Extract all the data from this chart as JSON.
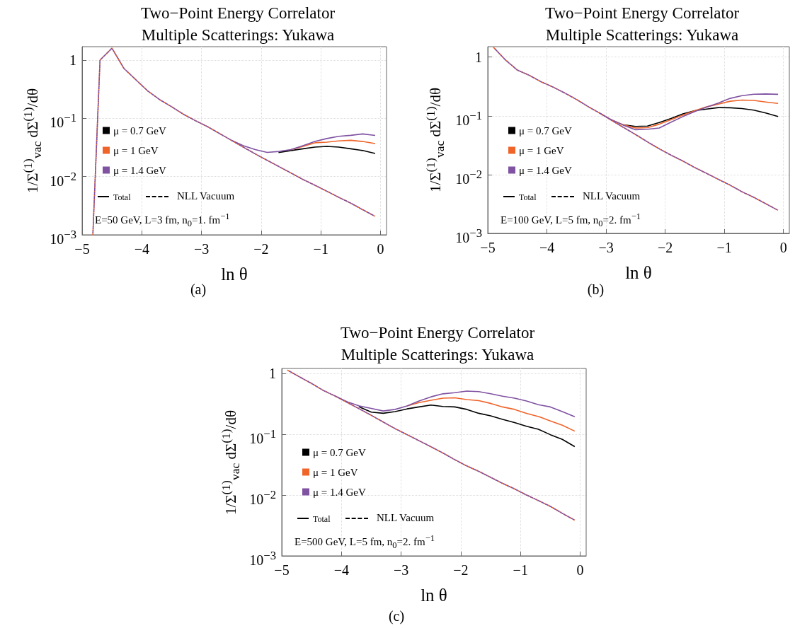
{
  "chart_data": [
    {
      "type": "line",
      "title": "Two−Point Energy Correlator",
      "subtitle": "Multiple Scatterings: Yukawa",
      "xlabel": "ln θ",
      "ylabel": "1/Σ$^{(1)}$$_{vac}$ dΣ$^{(1)}$/dθ",
      "log": "y",
      "grid": true,
      "legend": "left",
      "marker": "none",
      "xlim": [
        -5,
        0.1
      ],
      "xticks": [
        {
          "value": -5,
          "label": "−5"
        },
        {
          "value": -4,
          "label": "−4"
        },
        {
          "value": -3,
          "label": "−3"
        },
        {
          "value": -2,
          "label": "−2"
        },
        {
          "value": -1,
          "label": "−1"
        },
        {
          "value": 0,
          "label": "0"
        }
      ],
      "ylim": [
        0.001,
        1.7
      ],
      "yticks": [
        {
          "value": 0.001,
          "label": "10$^{−3}$"
        },
        {
          "value": 0.01,
          "label": "10$^{−2}$"
        },
        {
          "value": 0.1,
          "label": "10$^{−1}$"
        },
        {
          "value": 1,
          "label": "1"
        }
      ],
      "x": [
        -4.82,
        -4.7,
        -4.5,
        -4.3,
        -4.1,
        -3.9,
        -3.7,
        -3.5,
        -3.3,
        -3.1,
        -2.9,
        -2.7,
        -2.5,
        -2.3,
        -2.1,
        -1.9,
        -1.7,
        -1.5,
        -1.3,
        -1.1,
        -0.9,
        -0.7,
        -0.5,
        -0.3,
        -0.1
      ],
      "series": [
        {
          "name": "μ = 0.7 GeV",
          "color": "#000000",
          "line_style": "solid",
          "values": [
            null,
            null,
            null,
            null,
            null,
            null,
            null,
            null,
            null,
            null,
            null,
            null,
            null,
            null,
            null,
            null,
            0.026,
            0.028,
            0.03,
            0.032,
            0.033,
            0.032,
            0.03,
            0.028,
            0.025
          ]
        },
        {
          "name": "μ = 1 GeV",
          "color": "#f0642a",
          "line_style": "solid",
          "values": [
            null,
            null,
            null,
            null,
            null,
            null,
            null,
            null,
            null,
            null,
            null,
            null,
            null,
            null,
            null,
            null,
            null,
            0.029,
            0.033,
            0.038,
            0.039,
            0.041,
            0.042,
            0.04,
            0.037
          ]
        },
        {
          "name": "μ = 1.4 GeV",
          "color": "#7f52a2",
          "line_style": "solid",
          "values": [
            null,
            null,
            null,
            null,
            null,
            null,
            null,
            null,
            null,
            null,
            null,
            null,
            0.042,
            0.034,
            0.029,
            0.026,
            0.027,
            0.029,
            0.034,
            0.04,
            0.045,
            0.049,
            0.051,
            0.054,
            0.051
          ]
        },
        {
          "color": "#f0642a",
          "line_style": "dashed",
          "values": [
            0.001,
            1.0,
            1.6,
            0.72,
            0.46,
            0.295,
            0.209,
            0.158,
            0.117,
            0.091,
            0.072,
            0.055,
            0.042,
            0.032,
            0.0245,
            0.019,
            0.0148,
            0.0115,
            0.0089,
            0.0071,
            0.0056,
            0.0044,
            0.0035,
            0.0027,
            0.0021
          ]
        },
        {
          "color": "#7f52a2",
          "line_style": "dashed",
          "values": [
            0.001,
            1.0,
            1.6,
            0.72,
            0.46,
            0.295,
            0.209,
            0.158,
            0.117,
            0.091,
            0.072,
            0.055,
            0.042,
            0.032,
            0.0245,
            0.019,
            0.0148,
            0.0115,
            0.0089,
            0.0071,
            0.0056,
            0.0044,
            0.0035,
            0.0027,
            0.0021
          ]
        }
      ],
      "annotations": [
        "Total",
        "NLL Vacuum",
        "E=50 GeV, L=3 fm, n$_{0}$=1. fm$^{−1}$",
        "(a)"
      ]
    },
    {
      "type": "line",
      "title": "Two−Point Energy Correlator",
      "subtitle": "Multiple Scatterings: Yukawa",
      "xlabel": "ln θ",
      "ylabel": "1/Σ$^{(1)}$$_{vac}$ dΣ$^{(1)}$/dθ",
      "log": "y",
      "grid": true,
      "legend": "left",
      "marker": "none",
      "xlim": [
        -5,
        0.1
      ],
      "xticks": [
        {
          "value": -5,
          "label": "−5"
        },
        {
          "value": -4,
          "label": "−4"
        },
        {
          "value": -3,
          "label": "−3"
        },
        {
          "value": -2,
          "label": "−2"
        },
        {
          "value": -1,
          "label": "−1"
        },
        {
          "value": 0,
          "label": "0"
        }
      ],
      "ylim": [
        0.001,
        1.5
      ],
      "yticks": [
        {
          "value": 0.001,
          "label": "10$^{−3}$"
        },
        {
          "value": 0.01,
          "label": "10$^{−2}$"
        },
        {
          "value": 0.1,
          "label": "10$^{−1}$"
        },
        {
          "value": 1,
          "label": "1"
        }
      ],
      "x": [
        -4.9,
        -4.7,
        -4.5,
        -4.3,
        -4.1,
        -3.9,
        -3.7,
        -3.5,
        -3.3,
        -3.1,
        -2.9,
        -2.7,
        -2.5,
        -2.3,
        -2.1,
        -1.9,
        -1.7,
        -1.5,
        -1.3,
        -1.1,
        -0.9,
        -0.7,
        -0.5,
        -0.3,
        -0.1
      ],
      "series": [
        {
          "name": "μ = 0.7 GeV",
          "color": "#000000",
          "line_style": "solid",
          "values": [
            null,
            null,
            null,
            null,
            null,
            null,
            null,
            null,
            null,
            null,
            null,
            0.07,
            0.066,
            0.067,
            0.077,
            0.09,
            0.108,
            0.122,
            0.13,
            0.138,
            0.137,
            0.133,
            0.125,
            0.112,
            0.098
          ]
        },
        {
          "name": "μ = 1 GeV",
          "color": "#f0642a",
          "line_style": "solid",
          "values": [
            null,
            null,
            null,
            null,
            null,
            null,
            null,
            null,
            null,
            null,
            0.085,
            0.07,
            0.062,
            0.063,
            0.072,
            0.086,
            0.103,
            0.122,
            0.142,
            0.158,
            0.177,
            0.185,
            0.183,
            0.172,
            0.163
          ]
        },
        {
          "name": "μ = 1.4 GeV",
          "color": "#7f52a2",
          "line_style": "solid",
          "values": [
            null,
            null,
            null,
            null,
            null,
            null,
            null,
            null,
            null,
            0.11,
            0.085,
            0.069,
            0.058,
            0.059,
            0.062,
            0.078,
            0.097,
            0.118,
            0.14,
            0.165,
            0.198,
            0.22,
            0.233,
            0.235,
            0.232
          ]
        },
        {
          "color": "#f0642a",
          "line_style": "dashed",
          "values": [
            1.45,
            0.89,
            0.6,
            0.49,
            0.38,
            0.31,
            0.245,
            0.19,
            0.143,
            0.11,
            0.083,
            0.063,
            0.048,
            0.036,
            0.0275,
            0.0214,
            0.017,
            0.0132,
            0.0105,
            0.0083,
            0.0066,
            0.0051,
            0.0041,
            0.0032,
            0.0025
          ]
        },
        {
          "color": "#7f52a2",
          "line_style": "dashed",
          "values": [
            1.45,
            0.89,
            0.6,
            0.49,
            0.38,
            0.31,
            0.245,
            0.19,
            0.143,
            0.11,
            0.083,
            0.063,
            0.048,
            0.036,
            0.0275,
            0.0214,
            0.017,
            0.0132,
            0.0105,
            0.0083,
            0.0066,
            0.0051,
            0.0041,
            0.0032,
            0.0025
          ]
        }
      ],
      "annotations": [
        "Total",
        "NLL Vacuum",
        "E=100 GeV, L=5 fm, n$_{0}$=2. fm$^{−1}$",
        "(b)"
      ]
    },
    {
      "type": "line",
      "title": "Two−Point Energy Correlator",
      "subtitle": "Multiple Scatterings: Yukawa",
      "xlabel": "ln θ",
      "ylabel": "1/Σ$^{(1)}$$_{vac}$ dΣ$^{(1)}$/dθ",
      "log": "y",
      "grid": true,
      "legend": "left",
      "marker": "none",
      "xlim": [
        -5,
        0.1
      ],
      "xticks": [
        {
          "value": -5,
          "label": "−5"
        },
        {
          "value": -4,
          "label": "−4"
        },
        {
          "value": -3,
          "label": "−3"
        },
        {
          "value": -2,
          "label": "−2"
        },
        {
          "value": -1,
          "label": "−1"
        },
        {
          "value": 0,
          "label": "0"
        }
      ],
      "ylim": [
        0.001,
        1.2
      ],
      "yticks": [
        {
          "value": 0.001,
          "label": "10$^{−3}$"
        },
        {
          "value": 0.01,
          "label": "10$^{−2}$"
        },
        {
          "value": 0.1,
          "label": "10$^{−1}$"
        },
        {
          "value": 1,
          "label": "1"
        }
      ],
      "x": [
        -4.9,
        -4.7,
        -4.5,
        -4.3,
        -4.1,
        -3.9,
        -3.7,
        -3.5,
        -3.3,
        -3.1,
        -2.9,
        -2.7,
        -2.5,
        -2.3,
        -2.1,
        -1.9,
        -1.7,
        -1.5,
        -1.3,
        -1.1,
        -0.9,
        -0.7,
        -0.5,
        -0.3,
        -0.1
      ],
      "series": [
        {
          "name": "μ = 0.7 GeV",
          "color": "#000000",
          "line_style": "solid",
          "values": [
            null,
            null,
            null,
            null,
            null,
            null,
            0.28,
            0.23,
            0.22,
            0.235,
            0.26,
            0.28,
            0.3,
            0.285,
            0.28,
            0.255,
            0.22,
            0.2,
            0.175,
            0.155,
            0.135,
            0.12,
            0.098,
            0.082,
            0.063
          ]
        },
        {
          "name": "μ = 1 GeV",
          "color": "#f0642a",
          "line_style": "solid",
          "values": [
            null,
            null,
            null,
            null,
            null,
            null,
            null,
            null,
            null,
            null,
            0.29,
            0.33,
            0.36,
            0.39,
            0.395,
            0.37,
            0.355,
            0.32,
            0.28,
            0.255,
            0.22,
            0.195,
            0.165,
            0.14,
            0.113
          ]
        },
        {
          "name": "μ = 1.4 GeV",
          "color": "#7f52a2",
          "line_style": "solid",
          "values": [
            null,
            null,
            null,
            null,
            0.42,
            0.34,
            0.29,
            0.265,
            0.24,
            0.255,
            0.29,
            0.35,
            0.41,
            0.46,
            0.48,
            0.51,
            0.5,
            0.46,
            0.42,
            0.39,
            0.35,
            0.305,
            0.28,
            0.235,
            0.195
          ]
        },
        {
          "color": "#f0642a",
          "line_style": "dashed",
          "values": [
            1.12,
            0.87,
            0.68,
            0.52,
            0.42,
            0.33,
            0.26,
            0.204,
            0.158,
            0.123,
            0.098,
            0.078,
            0.062,
            0.049,
            0.038,
            0.03,
            0.0245,
            0.0195,
            0.0155,
            0.0126,
            0.01,
            0.0081,
            0.0065,
            0.005,
            0.0039
          ]
        },
        {
          "color": "#7f52a2",
          "line_style": "dashed",
          "values": [
            1.12,
            0.87,
            0.68,
            0.52,
            0.42,
            0.33,
            0.26,
            0.204,
            0.158,
            0.123,
            0.098,
            0.078,
            0.062,
            0.049,
            0.038,
            0.03,
            0.0245,
            0.0195,
            0.0155,
            0.0126,
            0.01,
            0.0081,
            0.0065,
            0.005,
            0.0039
          ]
        }
      ],
      "annotations": [
        "Total",
        "NLL Vacuum",
        "E=500 GeV, L=5 fm, n$_{0}$=2. fm$^{−1}$",
        "(c)"
      ]
    }
  ]
}
